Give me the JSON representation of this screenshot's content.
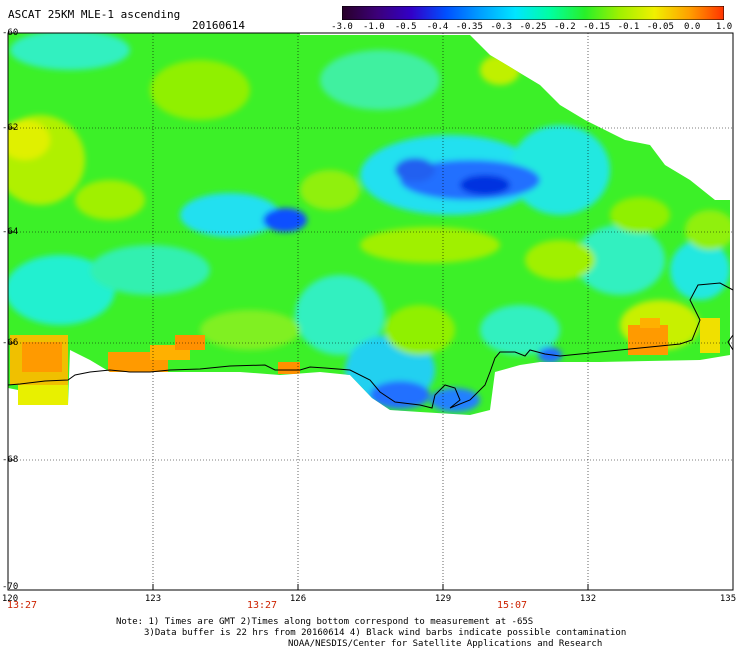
{
  "header": {
    "title": "ASCAT 25KM MLE-1 ascending",
    "date": "20160614"
  },
  "colorbar": {
    "labels": [
      "-3.0",
      "-1.0",
      "-0.5",
      "-0.4",
      "-0.35",
      "-0.3",
      "-0.25",
      "-0.2",
      "-0.15",
      "-0.1",
      "-0.05",
      "0.0",
      "1.0"
    ],
    "colors": [
      "#280028",
      "#3c0078",
      "#3200c8",
      "#0050ff",
      "#00a0ff",
      "#00e6ff",
      "#00ffa0",
      "#28f028",
      "#a0f000",
      "#f0f000",
      "#ffa000",
      "#ff3200"
    ]
  },
  "axes": {
    "lat_ticks": [
      "-60",
      "-62",
      "-64",
      "-66",
      "-68",
      "-70"
    ],
    "lon_ticks": [
      "120",
      "123",
      "126",
      "129",
      "132",
      "135"
    ]
  },
  "times": [
    "13:27",
    "13:27",
    "15:07"
  ],
  "notes": {
    "line1": "Note: 1) Times are GMT 2)Times along bottom correspond to measurement at -65S",
    "line2": "3)Data buffer is 22 hrs from 20160614 4) Black wind barbs indicate possible contamination",
    "line3": "NOAA/NESDIS/Center for Satellite Applications and Research"
  }
}
